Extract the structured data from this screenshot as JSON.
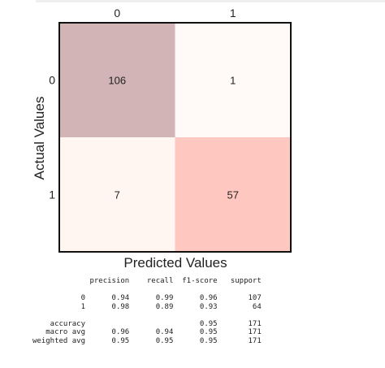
{
  "chart_data": {
    "type": "heatmap",
    "xlabel": "Predicted Values",
    "ylabel": "Actual Values",
    "x_categories": [
      "0",
      "1"
    ],
    "y_categories": [
      "0",
      "1"
    ],
    "values": [
      [
        106,
        1
      ],
      [
        7,
        57
      ]
    ],
    "cell_colors": [
      [
        "#d2b4b7",
        "#fffaf7"
      ],
      [
        "#fff6f1",
        "#fec8c0"
      ]
    ]
  },
  "report": {
    "headers": [
      "precision",
      "recall",
      "f1-score",
      "support"
    ],
    "rows": [
      {
        "label": "0",
        "values": [
          "0.94",
          "0.99",
          "0.96",
          "107"
        ]
      },
      {
        "label": "1",
        "values": [
          "0.98",
          "0.89",
          "0.93",
          "64"
        ]
      },
      {
        "label": "",
        "values": [
          "",
          "",
          "",
          ""
        ]
      },
      {
        "label": "accuracy",
        "values": [
          "",
          "",
          "0.95",
          "171"
        ]
      },
      {
        "label": "macro avg",
        "values": [
          "0.96",
          "0.94",
          "0.95",
          "171"
        ]
      },
      {
        "label": "weighted avg",
        "values": [
          "0.95",
          "0.95",
          "0.95",
          "171"
        ]
      }
    ]
  }
}
